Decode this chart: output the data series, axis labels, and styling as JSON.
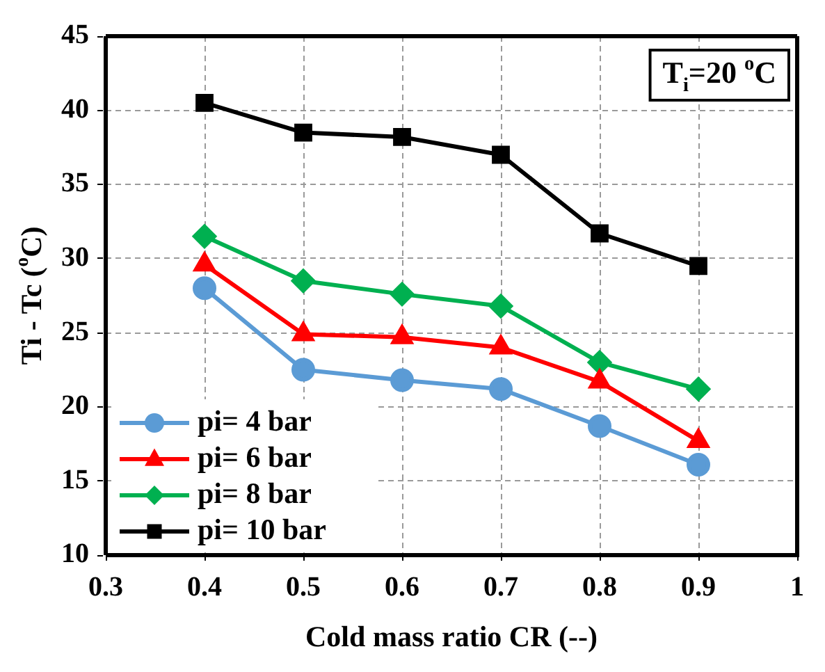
{
  "chart_data": {
    "type": "line",
    "xlabel": "Cold mass ratio CR (--)",
    "ylabel": "Ti - Tc ($^{o}$C)",
    "annotations": [
      "T$_{i}$=20 $^{o}$C"
    ],
    "x": [
      0.4,
      0.5,
      0.6,
      0.7,
      0.8,
      0.9
    ],
    "series": [
      {
        "name": "pi= 4 bar",
        "color": "#5b9bd5",
        "marker": "circle",
        "values": [
          28,
          22.5,
          21.8,
          21.2,
          18.7,
          16.1
        ]
      },
      {
        "name": "pi= 6 bar",
        "color": "#ff0000",
        "marker": "triangle",
        "values": [
          29.6,
          24.9,
          24.7,
          24.0,
          21.7,
          17.7
        ]
      },
      {
        "name": "pi= 8 bar",
        "color": "#00b050",
        "marker": "diamond",
        "values": [
          31.5,
          28.5,
          27.6,
          26.8,
          23.0,
          21.2
        ]
      },
      {
        "name": "pi= 10 bar",
        "color": "#000000",
        "marker": "square",
        "values": [
          40.5,
          38.5,
          38.2,
          37.0,
          31.7,
          29.5
        ]
      }
    ],
    "xlim": [
      0.3,
      1
    ],
    "xticks": [
      0.3,
      0.4,
      0.5,
      0.6,
      0.7,
      0.8,
      0.9,
      1
    ],
    "ylim": [
      10,
      45
    ],
    "yticks": [
      10,
      15,
      20,
      25,
      30,
      35,
      40,
      45
    ],
    "grid": true,
    "legend": "bottom left",
    "line_style": "solid"
  }
}
